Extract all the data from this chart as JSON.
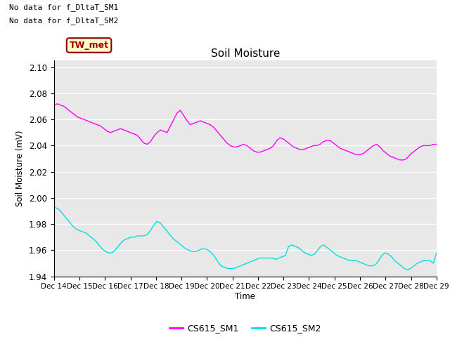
{
  "title": "Soil Moisture",
  "ylabel": "Soil Moisture (mV)",
  "xlabel": "Time",
  "annotations": [
    "No data for f_DltaT_SM1",
    "No data for f_DltaT_SM2"
  ],
  "legend_label": "TW_met",
  "legend_box_facecolor": "#ffffcc",
  "legend_box_edgecolor": "#8b0000",
  "ylim": [
    1.94,
    2.105
  ],
  "yticks": [
    1.94,
    1.96,
    1.98,
    2.0,
    2.02,
    2.04,
    2.06,
    2.08,
    2.1
  ],
  "xtick_labels": [
    "Dec 14",
    "Dec 15",
    "Dec 16",
    "Dec 17",
    "Dec 18",
    "Dec 19",
    "Dec 20",
    "Dec 21",
    "Dec 22",
    "Dec 23",
    "Dec 24",
    "Dec 25",
    "Dec 26",
    "Dec 27",
    "Dec 28",
    "Dec 29"
  ],
  "color_sm1": "#ff00ff",
  "color_sm2": "#00e0e0",
  "bg_color": "#e8e8e8",
  "line_legend_label1": "CS615_SM1",
  "line_legend_label2": "CS615_SM2",
  "sm1_data": [
    2.071,
    2.072,
    2.071,
    2.07,
    2.068,
    2.066,
    2.064,
    2.062,
    2.061,
    2.06,
    2.059,
    2.058,
    2.057,
    2.056,
    2.055,
    2.053,
    2.051,
    2.05,
    2.051,
    2.052,
    2.053,
    2.052,
    2.051,
    2.05,
    2.049,
    2.048,
    2.045,
    2.042,
    2.041,
    2.043,
    2.047,
    2.05,
    2.052,
    2.051,
    2.05,
    2.055,
    2.06,
    2.065,
    2.067,
    2.063,
    2.059,
    2.056,
    2.057,
    2.058,
    2.059,
    2.058,
    2.057,
    2.056,
    2.054,
    2.051,
    2.048,
    2.045,
    2.042,
    2.04,
    2.039,
    2.039,
    2.04,
    2.041,
    2.04,
    2.038,
    2.036,
    2.035,
    2.035,
    2.036,
    2.037,
    2.038,
    2.04,
    2.044,
    2.046,
    2.045,
    2.043,
    2.041,
    2.039,
    2.038,
    2.037,
    2.037,
    2.038,
    2.039,
    2.04,
    2.04,
    2.041,
    2.043,
    2.044,
    2.044,
    2.042,
    2.04,
    2.038,
    2.037,
    2.036,
    2.035,
    2.034,
    2.033,
    2.033,
    2.034,
    2.036,
    2.038,
    2.04,
    2.041,
    2.039,
    2.036,
    2.034,
    2.032,
    2.031,
    2.03,
    2.029,
    2.029,
    2.03,
    2.033,
    2.035,
    2.037,
    2.039,
    2.04,
    2.04,
    2.04,
    2.041,
    2.041
  ],
  "sm2_data": [
    1.993,
    1.992,
    1.99,
    1.987,
    1.984,
    1.981,
    1.978,
    1.976,
    1.975,
    1.974,
    1.973,
    1.971,
    1.969,
    1.967,
    1.964,
    1.961,
    1.959,
    1.958,
    1.958,
    1.96,
    1.963,
    1.966,
    1.968,
    1.969,
    1.97,
    1.97,
    1.971,
    1.971,
    1.971,
    1.972,
    1.975,
    1.979,
    1.982,
    1.981,
    1.978,
    1.975,
    1.972,
    1.969,
    1.967,
    1.965,
    1.963,
    1.961,
    1.96,
    1.959,
    1.959,
    1.96,
    1.961,
    1.961,
    1.96,
    1.958,
    1.955,
    1.951,
    1.948,
    1.947,
    1.946,
    1.946,
    1.946,
    1.947,
    1.948,
    1.949,
    1.95,
    1.951,
    1.952,
    1.953,
    1.954,
    1.954,
    1.954,
    1.954,
    1.954,
    1.953,
    1.954,
    1.955,
    1.956,
    1.963,
    1.964,
    1.963,
    1.962,
    1.96,
    1.958,
    1.957,
    1.956,
    1.957,
    1.96,
    1.963,
    1.964,
    1.962,
    1.96,
    1.958,
    1.956,
    1.955,
    1.954,
    1.953,
    1.952,
    1.952,
    1.952,
    1.951,
    1.95,
    1.949,
    1.948,
    1.948,
    1.949,
    1.952,
    1.956,
    1.958,
    1.957,
    1.955,
    1.952,
    1.95,
    1.948,
    1.946,
    1.945,
    1.946,
    1.948,
    1.95,
    1.951,
    1.952,
    1.952,
    1.952,
    1.95,
    1.958
  ]
}
